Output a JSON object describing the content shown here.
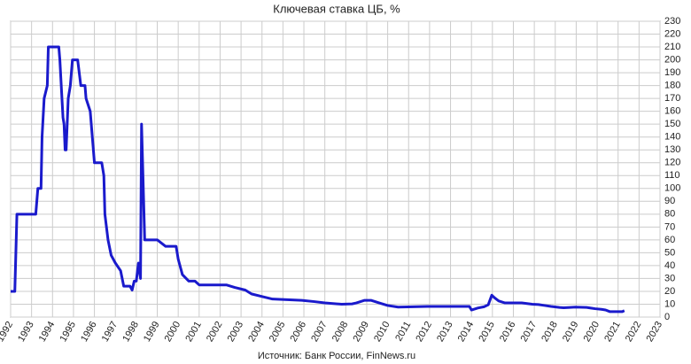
{
  "chart_data": {
    "type": "line",
    "title": "Ключевая ставка ЦБ, %",
    "source": "Источник: Банк России, FinNews.ru",
    "xlim": [
      1992,
      2023
    ],
    "xticks": [
      1992,
      1993,
      1994,
      1995,
      1996,
      1997,
      1998,
      1999,
      2000,
      2001,
      2002,
      2003,
      2004,
      2005,
      2006,
      2007,
      2008,
      2009,
      2010,
      2011,
      2012,
      2013,
      2014,
      2015,
      2016,
      2017,
      2018,
      2019,
      2020,
      2021,
      2022,
      2023
    ],
    "ylim": [
      0,
      230
    ],
    "yticks": [
      0,
      10,
      20,
      30,
      40,
      50,
      60,
      70,
      80,
      90,
      100,
      110,
      120,
      130,
      140,
      150,
      160,
      170,
      180,
      190,
      200,
      210,
      220,
      230
    ],
    "grid": true,
    "series": [
      {
        "color": "#1a1acc",
        "x": [
          1992.0,
          1992.2,
          1992.3,
          1993.2,
          1993.3,
          1993.45,
          1993.5,
          1993.6,
          1993.75,
          1993.8,
          1994.3,
          1994.35,
          1994.5,
          1994.55,
          1994.6,
          1994.65,
          1994.75,
          1994.85,
          1994.95,
          1995.2,
          1995.35,
          1995.55,
          1995.6,
          1995.8,
          1996.0,
          1996.35,
          1996.45,
          1996.5,
          1996.65,
          1996.8,
          1997.0,
          1997.25,
          1997.4,
          1997.7,
          1997.8,
          1997.9,
          1998.0,
          1998.1,
          1998.2,
          1998.25,
          1998.4,
          1999.0,
          1999.4,
          1999.9,
          2000.0,
          2000.2,
          2000.5,
          2000.8,
          2001.0,
          2002.3,
          2002.7,
          2003.2,
          2003.5,
          2004.0,
          2004.5,
          2005.9,
          2006.5,
          2007.0,
          2007.8,
          2008.3,
          2008.5,
          2008.9,
          2009.2,
          2009.6,
          2010.0,
          2010.5,
          2011.2,
          2011.9,
          2013.9,
          2014.0,
          2014.3,
          2014.6,
          2014.8,
          2014.97,
          2015.1,
          2015.3,
          2015.6,
          2016.4,
          2016.9,
          2017.2,
          2017.5,
          2017.8,
          2018.2,
          2018.4,
          2018.7,
          2018.96,
          2019.5,
          2019.7,
          2019.9,
          2020.2,
          2020.4,
          2020.6,
          2021.2,
          2021.3
        ],
        "values": [
          20,
          20,
          80,
          80,
          100,
          100,
          140,
          170,
          180,
          210,
          210,
          200,
          155,
          150,
          130,
          130,
          170,
          180,
          200,
          200,
          180,
          180,
          170,
          160,
          120,
          120,
          110,
          80,
          60,
          48,
          42,
          36,
          24,
          24,
          21,
          28,
          28,
          42,
          30,
          150,
          60,
          60,
          55,
          55,
          45,
          33,
          28,
          28,
          25,
          25,
          23,
          21,
          18,
          16,
          14,
          13,
          12,
          11,
          10,
          10.25,
          11,
          13,
          13,
          11,
          9,
          7.75,
          8,
          8.25,
          8.25,
          5.5,
          7,
          8,
          9.5,
          17,
          15,
          12.5,
          11,
          11,
          10,
          9.75,
          9,
          8.25,
          7.5,
          7.25,
          7.5,
          7.75,
          7.5,
          7,
          6.5,
          6,
          5.5,
          4.25,
          4.25,
          5
        ]
      }
    ]
  }
}
